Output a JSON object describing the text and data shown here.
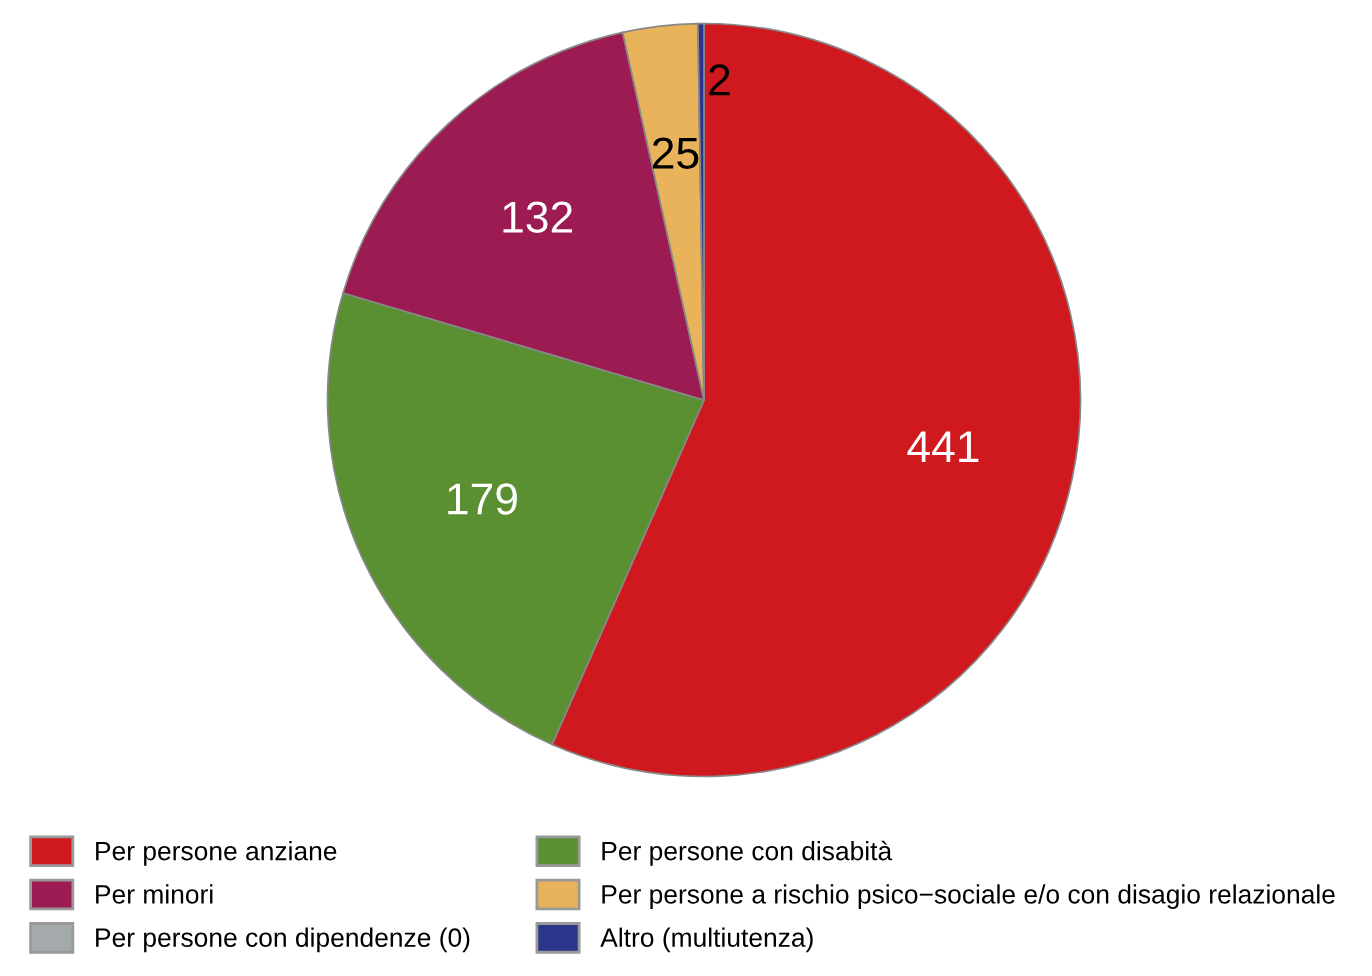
{
  "chart_data": {
    "type": "pie",
    "categories": [
      "Per persone anziane",
      "Per persone con disabità",
      "Per minori",
      "Per persone a rischio psico−sociale e/o con disagio relazionale",
      "Per persone con dipendenze (0)",
      "Altro (multiutenza)"
    ],
    "values": [
      441,
      179,
      132,
      25,
      0,
      2
    ],
    "colors": [
      "#d0191e",
      "#5a8f32",
      "#9c1b52",
      "#e9b35c",
      "#a4aaab",
      "#2b3589"
    ],
    "value_labels": [
      "441",
      "179",
      "132",
      "25",
      null,
      "2"
    ],
    "legend": "bottom"
  }
}
